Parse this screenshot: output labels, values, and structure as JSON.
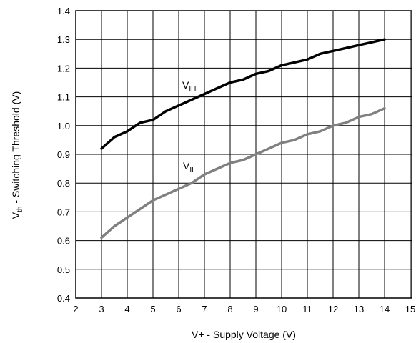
{
  "chart_data": {
    "type": "line",
    "title": "",
    "xlabel": "V+ - Supply Voltage (V)",
    "ylabel_main": "V",
    "ylabel_sub": "th",
    "ylabel_rest": " - Switching Threshold (V)",
    "xlim": [
      2,
      15
    ],
    "ylim": [
      0.4,
      1.4
    ],
    "x_ticks": [
      "2",
      "3",
      "4",
      "5",
      "6",
      "7",
      "8",
      "9",
      "10",
      "11",
      "12",
      "13",
      "14",
      "15"
    ],
    "y_ticks": [
      "0.4",
      "0.5",
      "0.6",
      "0.7",
      "0.8",
      "0.9",
      "1.0",
      "1.1",
      "1.2",
      "1.3",
      "1.4"
    ],
    "grid": true,
    "series": [
      {
        "name_main": "V",
        "name_sub": "IH",
        "color": "#000000",
        "x": [
          3,
          3.5,
          4,
          4.5,
          5,
          5.5,
          6,
          6.5,
          7,
          7.5,
          8,
          8.5,
          9,
          9.5,
          10,
          10.5,
          11,
          11.5,
          12,
          12.5,
          13,
          13.5,
          14
        ],
        "y": [
          0.92,
          0.96,
          0.98,
          1.01,
          1.02,
          1.05,
          1.07,
          1.09,
          1.11,
          1.13,
          1.15,
          1.16,
          1.18,
          1.19,
          1.21,
          1.22,
          1.23,
          1.25,
          1.26,
          1.27,
          1.28,
          1.29,
          1.3
        ]
      },
      {
        "name_main": "V",
        "name_sub": "IL",
        "color": "#808080",
        "x": [
          3,
          3.5,
          4,
          4.5,
          5,
          5.5,
          6,
          6.5,
          7,
          7.5,
          8,
          8.5,
          9,
          9.5,
          10,
          10.5,
          11,
          11.5,
          12,
          12.5,
          13,
          13.5,
          14
        ],
        "y": [
          0.61,
          0.65,
          0.68,
          0.71,
          0.74,
          0.76,
          0.78,
          0.8,
          0.83,
          0.85,
          0.87,
          0.88,
          0.9,
          0.92,
          0.94,
          0.95,
          0.97,
          0.98,
          1.0,
          1.01,
          1.03,
          1.04,
          1.06
        ]
      }
    ]
  }
}
